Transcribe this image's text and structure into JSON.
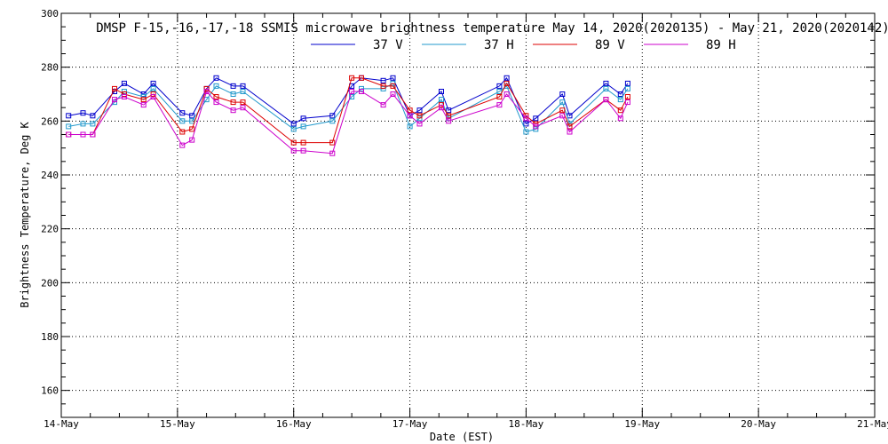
{
  "chart_data": {
    "type": "line",
    "title": "DMSP F-15,-16,-17,-18 SSMIS microwave brightness temperature May 14, 2020(2020135) - May 21, 2020(2020142)",
    "xlabel": "Date (EST)",
    "ylabel": "Brightness Temperature, Deg K",
    "xlim": [
      "14-May 00:00",
      "21-May 00:00"
    ],
    "ylim": [
      150,
      300
    ],
    "x_ticks": [
      "14-May",
      "15-May",
      "16-May",
      "17-May",
      "18-May",
      "19-May",
      "20-May",
      "21-May"
    ],
    "y_ticks": [
      160,
      180,
      200,
      220,
      240,
      260,
      280,
      300
    ],
    "grid": true,
    "legend_position": "top-center",
    "x": [
      "14-May 01:30",
      "14-May 04:30",
      "14-May 06:30",
      "14-May 11:00",
      "14-May 13:00",
      "14-May 17:00",
      "14-May 19:00",
      "15-May 01:00",
      "15-May 03:00",
      "15-May 06:00",
      "15-May 08:00",
      "15-May 11:30",
      "15-May 13:30",
      "16-May 00:00",
      "16-May 02:00",
      "16-May 08:00",
      "16-May 12:00",
      "16-May 14:00",
      "16-May 18:30",
      "16-May 20:30",
      "17-May 00:00",
      "17-May 02:00",
      "17-May 06:30",
      "17-May 08:00",
      "17-May 18:30",
      "17-May 20:00",
      "18-May 00:00",
      "18-May 02:00",
      "18-May 07:30",
      "18-May 09:00",
      "18-May 16:30",
      "18-May 19:30",
      "18-May 21:00"
    ],
    "series": [
      {
        "name": "37 V",
        "color": "#0000cc",
        "values": [
          262,
          263,
          262,
          271,
          274,
          270,
          274,
          263,
          262,
          272,
          276,
          273,
          273,
          259,
          261,
          262,
          273,
          276,
          275,
          276,
          262,
          264,
          271,
          264,
          273,
          276,
          259,
          261,
          270,
          262,
          274,
          270,
          274
        ]
      },
      {
        "name": "37 H",
        "color": "#2299cc",
        "values": [
          258,
          259,
          259,
          267,
          271,
          269,
          272,
          260,
          260,
          268,
          273,
          270,
          271,
          257,
          258,
          260,
          269,
          272,
          272,
          274,
          258,
          261,
          268,
          261,
          271,
          273,
          256,
          257,
          267,
          259,
          272,
          268,
          272
        ]
      },
      {
        "name": "89 V",
        "color": "#dd0000",
        "values": [
          255,
          255,
          255,
          272,
          270,
          268,
          270,
          256,
          257,
          272,
          269,
          267,
          267,
          252,
          252,
          252,
          276,
          276,
          273,
          273,
          264,
          262,
          266,
          262,
          269,
          274,
          262,
          259,
          264,
          258,
          268,
          264,
          269
        ]
      },
      {
        "name": "89 H",
        "color": "#cc00cc",
        "values": [
          255,
          255,
          255,
          268,
          269,
          266,
          269,
          251,
          253,
          271,
          267,
          264,
          265,
          249,
          249,
          248,
          271,
          271,
          266,
          270,
          262,
          259,
          265,
          260,
          266,
          270,
          261,
          258,
          262,
          256,
          268,
          261,
          267
        ]
      }
    ]
  }
}
